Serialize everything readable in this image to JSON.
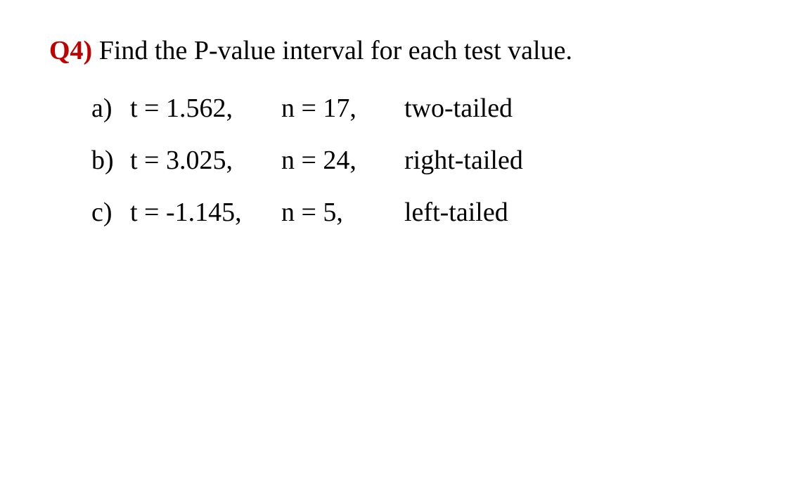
{
  "question": {
    "label": "Q4)",
    "prompt": "Find the P-value interval for each test value."
  },
  "items": [
    {
      "label": "a)",
      "t": "t = 1.562,",
      "n": "n = 17,",
      "tail": "two-tailed"
    },
    {
      "label": "b)",
      "t": "t = 3.025,",
      "n": "n = 24,",
      "tail": "right-tailed"
    },
    {
      "label": "c)",
      "t": "t = -1.145,",
      "n": "n = 5,",
      "tail": "left-tailed"
    }
  ],
  "colors": {
    "label_color": "#c00000",
    "text_color": "#000000",
    "background_color": "#ffffff"
  },
  "typography": {
    "font_family": "Times New Roman",
    "font_size_pt": 28
  }
}
